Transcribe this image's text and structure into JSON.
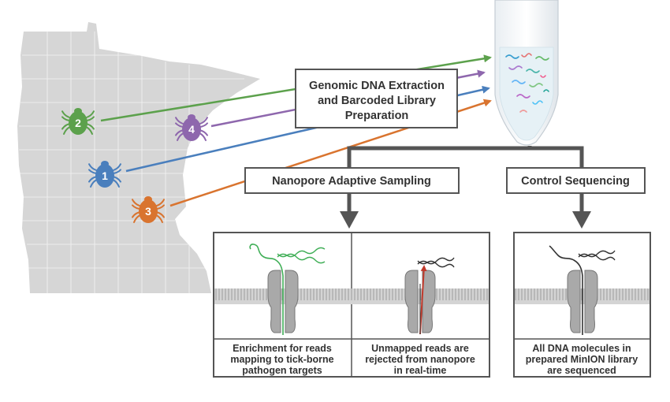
{
  "extraction_box": {
    "lines": [
      "Genomic DNA Extraction",
      "and Barcoded Library",
      "Preparation"
    ]
  },
  "adaptive_box": {
    "label": "Nanopore Adaptive Sampling"
  },
  "control_box": {
    "label": "Control Sequencing"
  },
  "ticks": [
    {
      "number": "1",
      "color": "#4a7fbd"
    },
    {
      "number": "2",
      "color": "#5ca14c"
    },
    {
      "number": "3",
      "color": "#d9742f"
    },
    {
      "number": "4",
      "color": "#8e67ad"
    }
  ],
  "panels": [
    {
      "caption_lines": [
        "Enrichment for reads",
        "mapping to tick-borne",
        "pathogen targets"
      ],
      "dna_color": "#3fae56"
    },
    {
      "caption_lines": [
        "Unmapped reads are",
        "rejected from nanopore",
        "in real-time"
      ],
      "dna_color": "#333333",
      "arrow_color": "#c0392b"
    },
    {
      "caption_lines": [
        "All DNA molecules in",
        "prepared MinION library",
        "are sequenced"
      ],
      "dna_color": "#333333"
    }
  ],
  "colors": {
    "map": "#d6d6d6",
    "box_border": "#555555",
    "flow_arrow": "#555555",
    "membrane": "#c8c8c8",
    "pore": "#9a9a9a"
  }
}
